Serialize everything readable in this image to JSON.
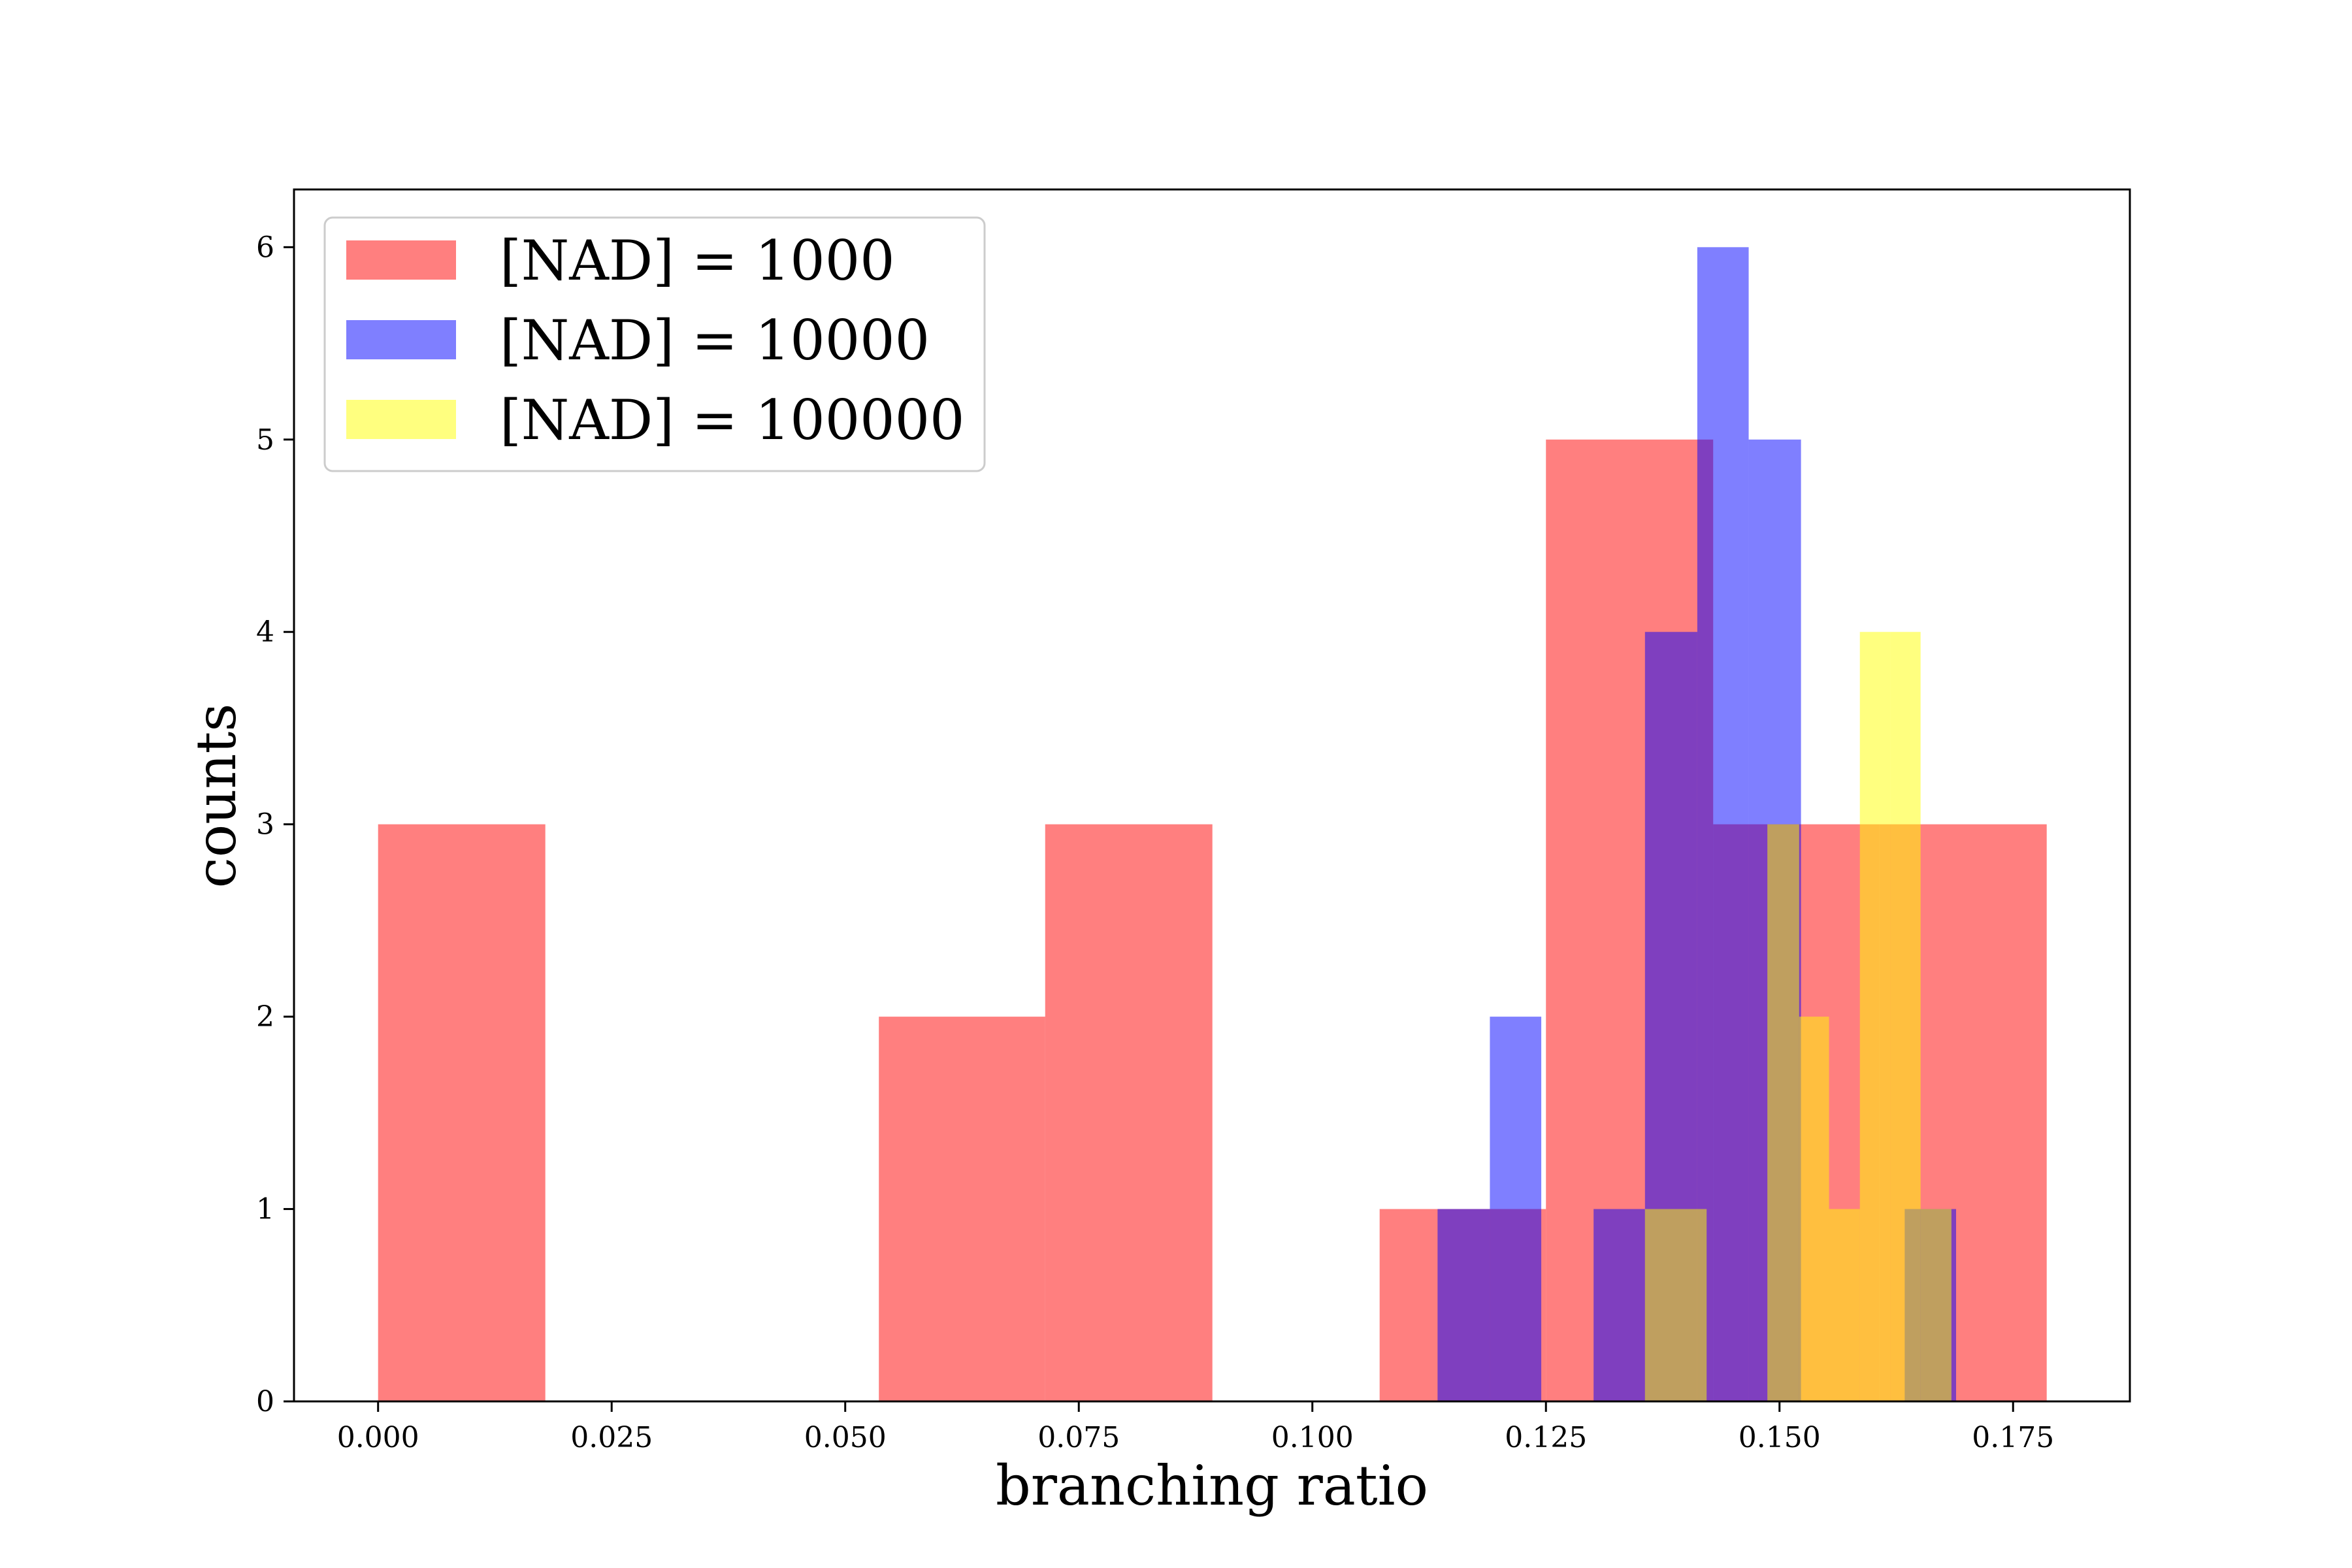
{
  "chart_data": {
    "type": "histogram",
    "title": "",
    "xlabel": "branching ratio",
    "ylabel": "counts",
    "xlim": [
      -0.009,
      0.1875
    ],
    "ylim": [
      0,
      6.3
    ],
    "xticks": [
      "0.000",
      "0.025",
      "0.050",
      "0.075",
      "0.100",
      "0.125",
      "0.150",
      "0.175"
    ],
    "yticks": [
      "0",
      "1",
      "2",
      "3",
      "4",
      "5",
      "6"
    ],
    "grid": false,
    "legend_position": "upper-left",
    "series": [
      {
        "name": "[NAD] = 1000",
        "color": "#ff0000",
        "alpha": 0.5,
        "bins": [
          {
            "start": 0.0,
            "end": 0.0179,
            "count": 3
          },
          {
            "start": 0.0179,
            "end": 0.0357,
            "count": 0
          },
          {
            "start": 0.0357,
            "end": 0.0536,
            "count": 0
          },
          {
            "start": 0.0536,
            "end": 0.0714,
            "count": 2
          },
          {
            "start": 0.0714,
            "end": 0.0893,
            "count": 3
          },
          {
            "start": 0.0893,
            "end": 0.1072,
            "count": 0
          },
          {
            "start": 0.1072,
            "end": 0.125,
            "count": 1
          },
          {
            "start": 0.125,
            "end": 0.1429,
            "count": 5
          },
          {
            "start": 0.1429,
            "end": 0.1607,
            "count": 3
          },
          {
            "start": 0.1607,
            "end": 0.1786,
            "count": 3
          }
        ]
      },
      {
        "name": "[NAD] = 10000",
        "color": "#0000ff",
        "alpha": 0.5,
        "bins": [
          {
            "start": 0.1134,
            "end": 0.119,
            "count": 1
          },
          {
            "start": 0.119,
            "end": 0.1245,
            "count": 2
          },
          {
            "start": 0.1245,
            "end": 0.1301,
            "count": 0
          },
          {
            "start": 0.1301,
            "end": 0.1356,
            "count": 1
          },
          {
            "start": 0.1356,
            "end": 0.1412,
            "count": 4
          },
          {
            "start": 0.1412,
            "end": 0.1467,
            "count": 6
          },
          {
            "start": 0.1467,
            "end": 0.1523,
            "count": 5
          },
          {
            "start": 0.1523,
            "end": 0.1578,
            "count": 0
          },
          {
            "start": 0.1578,
            "end": 0.1634,
            "count": 0
          },
          {
            "start": 0.1634,
            "end": 0.1689,
            "count": 1
          }
        ]
      },
      {
        "name": "[NAD] = 100000",
        "color": "#ffff00",
        "alpha": 0.5,
        "bins": [
          {
            "start": 0.1356,
            "end": 0.1422,
            "count": 1
          },
          {
            "start": 0.1422,
            "end": 0.1487,
            "count": 0
          },
          {
            "start": 0.1487,
            "end": 0.1521,
            "count": 3
          },
          {
            "start": 0.1521,
            "end": 0.1553,
            "count": 2
          },
          {
            "start": 0.1553,
            "end": 0.1586,
            "count": 1
          },
          {
            "start": 0.1586,
            "end": 0.1619,
            "count": 4
          },
          {
            "start": 0.1619,
            "end": 0.1651,
            "count": 4
          },
          {
            "start": 0.1651,
            "end": 0.1684,
            "count": 1
          }
        ]
      }
    ]
  }
}
